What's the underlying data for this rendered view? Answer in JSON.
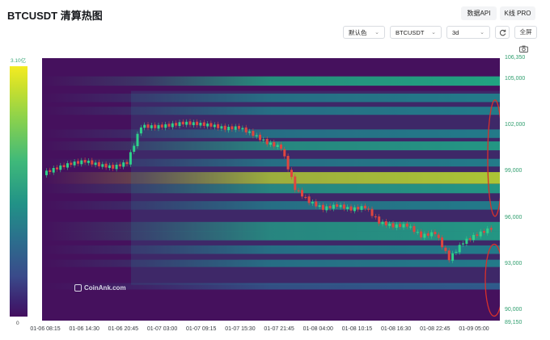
{
  "header": {
    "title": "BTCUSDT 清算热图",
    "api_button": "数据API",
    "kline_button": "K线 PRO"
  },
  "controls": {
    "color_scheme": "默认色",
    "symbol": "BTCUSDT",
    "range": "3d",
    "fullscreen": "全屏",
    "refresh_icon": "refresh-icon",
    "chevron_icon": "chevron-down-icon",
    "camera_icon": "camera-icon"
  },
  "legend": {
    "max_label": "3.10亿",
    "min_label": "0",
    "colors": [
      "#440f5f",
      "#3a4a8a",
      "#219287",
      "#3fb97a",
      "#8fd34a",
      "#f4ec22"
    ]
  },
  "watermark": "CoinAnk.com",
  "chart_data": {
    "type": "heatmap",
    "ylim": [
      89150,
      106350
    ],
    "y_ticks": [
      "106,350",
      "105,000",
      "102,000",
      "99,000",
      "96,000",
      "93,000",
      "90,000",
      "89,150"
    ],
    "x_ticks": [
      "01-06 08:15",
      "01-06 14:30",
      "01-06 20:45",
      "01-07 03:00",
      "01-07 09:15",
      "01-07 15:30",
      "01-07 21:45",
      "01-08 04:00",
      "01-08 10:15",
      "01-08 16:30",
      "01-08 22:45",
      "01-09 05:00"
    ],
    "price_series": [
      98800,
      99150,
      99450,
      99600,
      99350,
      99200,
      99500,
      101900,
      101850,
      101950,
      102100,
      102050,
      101950,
      101750,
      101800,
      101350,
      100800,
      100500,
      97800,
      96950,
      96500,
      96700,
      96450,
      96600,
      95600,
      95350,
      95400,
      94700,
      94900,
      93200,
      94300,
      94800,
      95200
    ],
    "heat_bands": [
      {
        "price": 104850,
        "intensity": 0.55
      },
      {
        "price": 103750,
        "intensity": 0.45
      },
      {
        "price": 102900,
        "intensity": 0.4
      },
      {
        "price": 101400,
        "intensity": 0.45
      },
      {
        "price": 100600,
        "intensity": 0.5
      },
      {
        "price": 99500,
        "intensity": 0.35
      },
      {
        "price": 98500,
        "intensity": 0.85
      },
      {
        "price": 97800,
        "intensity": 0.55
      },
      {
        "price": 96700,
        "intensity": 0.45
      },
      {
        "price": 95300,
        "intensity": 0.6
      },
      {
        "price": 94700,
        "intensity": 0.5
      },
      {
        "price": 93800,
        "intensity": 0.45
      },
      {
        "price": 92900,
        "intensity": 0.3
      },
      {
        "price": 91400,
        "intensity": 0.2
      }
    ],
    "highlight_ellipses": "red"
  }
}
